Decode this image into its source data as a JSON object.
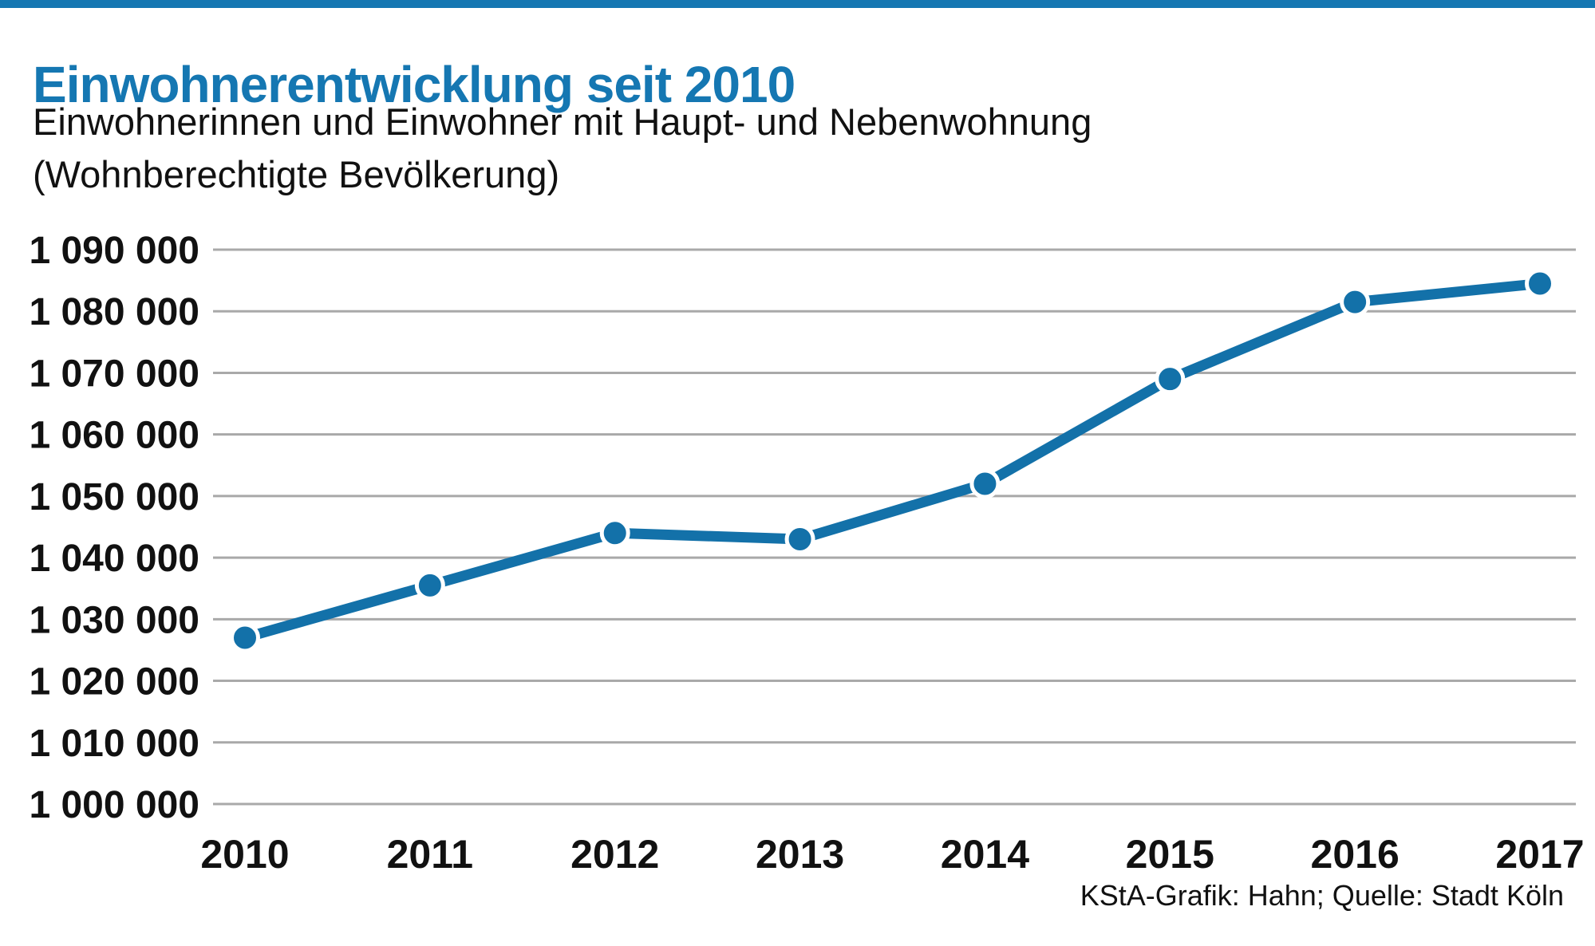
{
  "page": {
    "title": "Einwohnerentwicklung seit 2010",
    "subtitle_lines": [
      "Einwohnerinnen und Einwohner mit Haupt- und Nebenwohnung",
      "(Wohnberechtigte Bevölkerung)"
    ],
    "source": "KStA-Grafik: Hahn; Quelle: Stadt Köln"
  },
  "colors": {
    "accent_blue": "#1577b2",
    "line_blue": "#1371a9",
    "grid_gray": "#a9a9a9",
    "text_black": "#111111",
    "dot_halo_white": "#ffffff"
  },
  "chart_data": {
    "type": "line",
    "title": "Einwohnerentwicklung seit 2010",
    "subtitle": "Einwohnerinnen und Einwohner mit Haupt- und Nebenwohnung (Wohnberechtigte Bevölkerung)",
    "categories": [
      "2010",
      "2011",
      "2012",
      "2013",
      "2014",
      "2015",
      "2016",
      "2017"
    ],
    "values": [
      1027000,
      1035500,
      1044000,
      1043000,
      1052000,
      1069000,
      1081500,
      1084500
    ],
    "xlabel": "",
    "ylabel": "",
    "ylim": [
      1000000,
      1090000
    ],
    "ytick_step": 10000,
    "ytick_labels": [
      "1 000 000",
      "1 010 000",
      "1 020 000",
      "1 030 000",
      "1 040 000",
      "1 050 000",
      "1 060 000",
      "1 070 000",
      "1 080 000",
      "1 090 000"
    ],
    "grid": true,
    "legend": false,
    "source": "KStA-Grafik: Hahn; Quelle: Stadt Köln"
  }
}
